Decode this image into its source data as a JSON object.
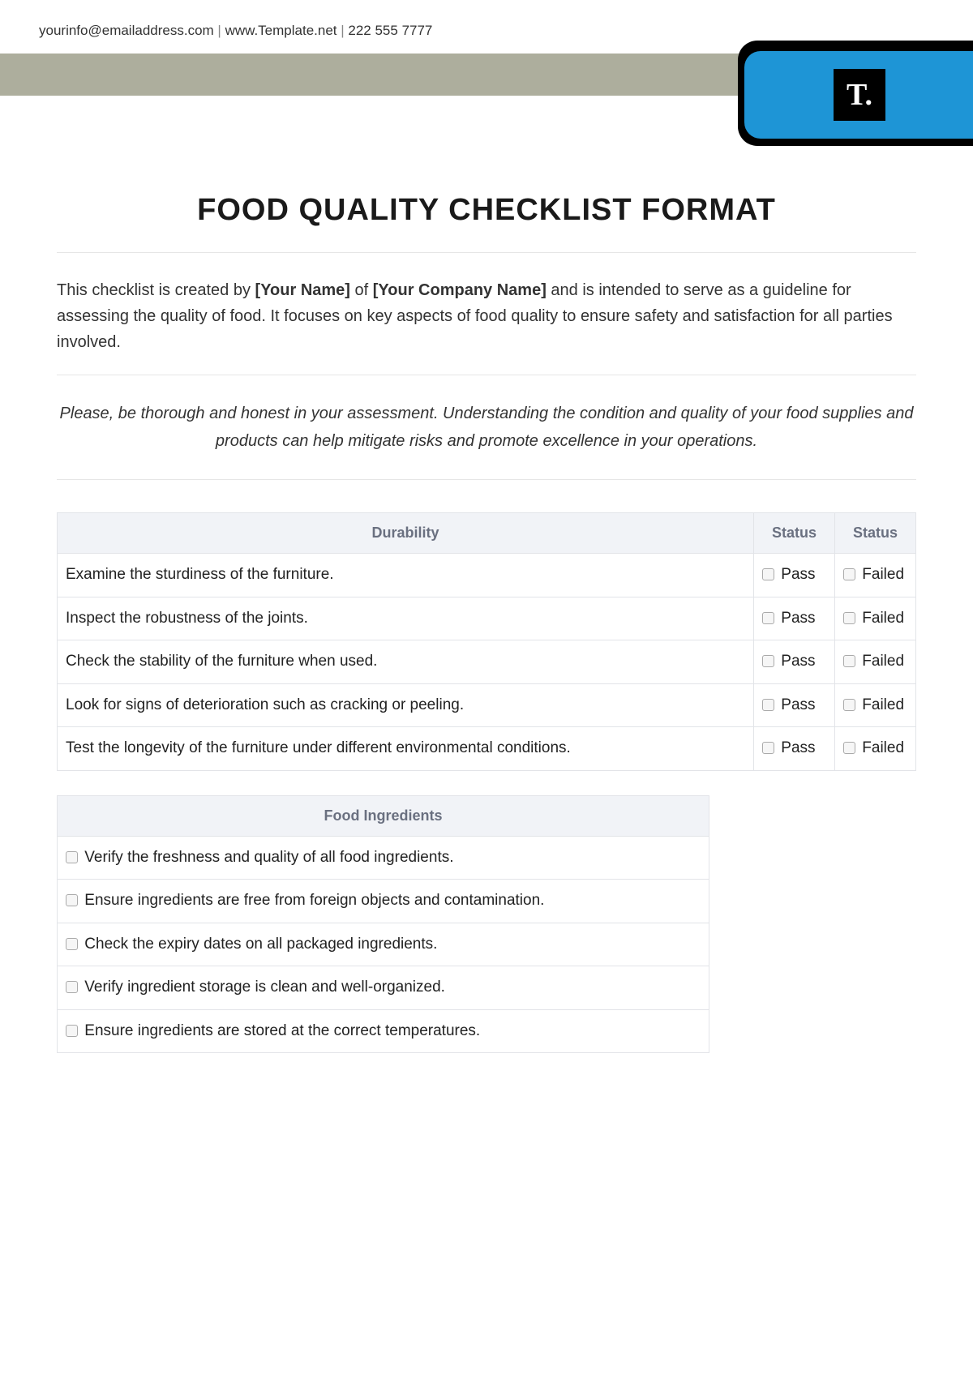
{
  "header": {
    "email": "yourinfo@emailaddress.com",
    "website": "www.Template.net",
    "phone": "222 555 7777"
  },
  "logo": {
    "letter": "T."
  },
  "title": "FOOD QUALITY CHECKLIST FORMAT",
  "intro": {
    "pre": "This checklist is created by ",
    "name_ph": "[Your Name]",
    "mid": " of ",
    "company_ph": "[Your Company Name]",
    "post": " and is intended to serve as a guideline for assessing the quality of food. It focuses on key aspects of food quality to ensure safety and satisfaction for all parties involved."
  },
  "note": "Please, be thorough and honest in your assessment. Understanding the condition and quality of your food supplies and products can help mitigate risks and promote excellence in your operations.",
  "labels": {
    "pass": "Pass",
    "failed": "Failed"
  },
  "section1": {
    "heading": "Durability",
    "col2": "Status",
    "col3": "Status",
    "items": [
      "Examine the sturdiness of the furniture.",
      "Inspect the robustness of the joints.",
      "Check the stability of the furniture when used.",
      "Look for signs of deterioration such as cracking or peeling.",
      "Test the longevity of the furniture under different environmental conditions."
    ]
  },
  "section2": {
    "heading": "Food Ingredients",
    "items": [
      "Verify the freshness and quality of all food ingredients.",
      "Ensure ingredients are free from foreign objects and contamination.",
      "Check the expiry dates on all packaged ingredients.",
      "Verify ingredient storage is clean and well-organized.",
      "Ensure ingredients are stored at the correct temperatures."
    ]
  },
  "colors": {
    "brand_blue": "#1e95d6",
    "gray_band": "#adae9d",
    "header_bg": "#f1f3f7",
    "header_text": "#6a7080",
    "border": "#e2e4e8"
  }
}
